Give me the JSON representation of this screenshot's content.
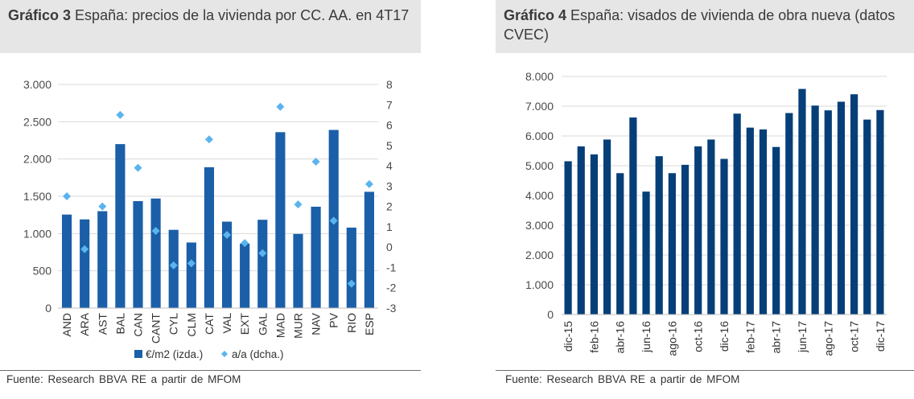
{
  "colors": {
    "bar": "#1b5fa8",
    "bar_right": "#063f78",
    "marker": "#5bb4ee",
    "grid": "#d9d9d9",
    "title_bg": "#e6e6e6"
  },
  "chart_data": [
    {
      "type": "bar",
      "title_bold": "Gráfico 3",
      "title": "España: precios de la vivienda por CC. AA. en 4T17",
      "categories": [
        "AND",
        "ARA",
        "AST",
        "BAL",
        "CAN",
        "CANT",
        "CYL",
        "CLM",
        "CAT",
        "VAL",
        "EXT",
        "GAL",
        "MAD",
        "MUR",
        "NAV",
        "PV",
        "RIO",
        "ESP"
      ],
      "series": [
        {
          "name": "€/m2 (izda.)",
          "axis": "left",
          "kind": "bar",
          "values": [
            1255,
            1190,
            1300,
            2200,
            1435,
            1470,
            1050,
            880,
            1890,
            1160,
            865,
            1185,
            2360,
            995,
            1360,
            2390,
            1080,
            1560
          ]
        },
        {
          "name": "a/a (dcha.)",
          "axis": "right",
          "kind": "marker",
          "values": [
            2.5,
            -0.1,
            2.0,
            6.5,
            3.9,
            0.8,
            -0.9,
            -0.8,
            5.3,
            0.6,
            0.2,
            -0.3,
            6.9,
            2.1,
            4.2,
            1.3,
            -1.8,
            3.1
          ]
        }
      ],
      "ylim": [
        0,
        3000
      ],
      "yticks": [
        0,
        500,
        1000,
        1500,
        2000,
        2500,
        3000
      ],
      "ytick_labels": [
        "0",
        "500",
        "1.000",
        "1.500",
        "2.000",
        "2.500",
        "3.000"
      ],
      "y2lim": [
        -3,
        8
      ],
      "y2ticks": [
        -3,
        -2,
        -1,
        0,
        1,
        2,
        3,
        4,
        5,
        6,
        7,
        8
      ],
      "y2tick_labels": [
        "-3",
        "-2",
        "-1",
        "0",
        "1",
        "2",
        "3",
        "4",
        "5",
        "6",
        "7",
        "8"
      ],
      "legend": "bottom",
      "source": "Fuente: Research BBVA RE a partir de MFOM"
    },
    {
      "type": "bar",
      "title_bold": "Gráfico 4",
      "title": "España: visados de vivienda de obra nueva (datos CVEC)",
      "categories": [
        "dic-15",
        "ene-16",
        "feb-16",
        "mar-16",
        "abr-16",
        "may-16",
        "jun-16",
        "jul-16",
        "ago-16",
        "sep-16",
        "oct-16",
        "nov-16",
        "dic-16",
        "ene-17",
        "feb-17",
        "mar-17",
        "abr-17",
        "may-17",
        "jun-17",
        "jul-17",
        "ago-17",
        "sep-17",
        "oct-17",
        "nov-17",
        "dic-17"
      ],
      "tick_labels": [
        "dic-15",
        "",
        "feb-16",
        "",
        "abr-16",
        "",
        "jun-16",
        "",
        "ago-16",
        "",
        "oct-16",
        "",
        "dic-16",
        "",
        "feb-17",
        "",
        "abr-17",
        "",
        "jun-17",
        "",
        "ago-17",
        "",
        "oct-17",
        "",
        "dic-17"
      ],
      "values": [
        5150,
        5650,
        5380,
        5880,
        4750,
        6620,
        4130,
        5320,
        4750,
        5030,
        5650,
        5880,
        5230,
        6750,
        6280,
        6220,
        5630,
        6770,
        7580,
        7020,
        6860,
        7150,
        7400,
        6550,
        6870
      ],
      "ylim": [
        0,
        8000
      ],
      "yticks": [
        0,
        1000,
        2000,
        3000,
        4000,
        5000,
        6000,
        7000,
        8000
      ],
      "ytick_labels": [
        "0",
        "1.000",
        "2.000",
        "3.000",
        "4.000",
        "5.000",
        "6.000",
        "7.000",
        "8.000"
      ],
      "source": "Fuente: Research BBVA RE a partir de MFOM"
    }
  ]
}
